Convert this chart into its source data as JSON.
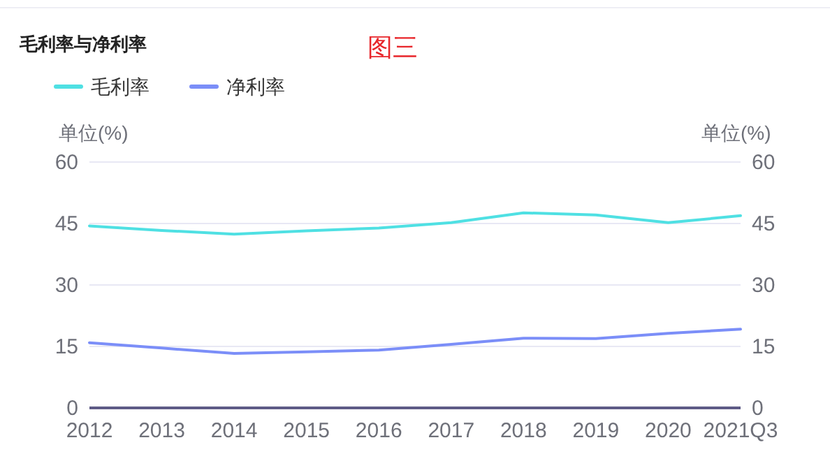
{
  "chart_data": {
    "type": "line",
    "title": "毛利率与净利率",
    "annotations": [
      "图三"
    ],
    "ylabel": "单位(%)",
    "y2label": "单位(%)",
    "categories": [
      "2012",
      "2013",
      "2014",
      "2015",
      "2016",
      "2017",
      "2018",
      "2019",
      "2020",
      "2021Q3"
    ],
    "series": [
      {
        "name": "毛利率",
        "color": "#4fe0e3",
        "values": [
          44.4,
          43.3,
          42.4,
          43.2,
          43.9,
          45.2,
          47.6,
          47.1,
          45.2,
          46.9
        ]
      },
      {
        "name": "净利率",
        "color": "#7b8ef8",
        "values": [
          15.9,
          14.6,
          13.3,
          13.7,
          14.1,
          15.5,
          17.0,
          16.9,
          18.2,
          19.2
        ]
      }
    ],
    "ylim": [
      0,
      60
    ],
    "yticks": [
      0,
      15,
      30,
      45,
      60
    ],
    "y2lim": [
      0,
      60
    ],
    "y2ticks": [
      0,
      15,
      30,
      45,
      60
    ],
    "grid": "y",
    "legend": "top left",
    "marker": "none",
    "line_style": "solid"
  }
}
